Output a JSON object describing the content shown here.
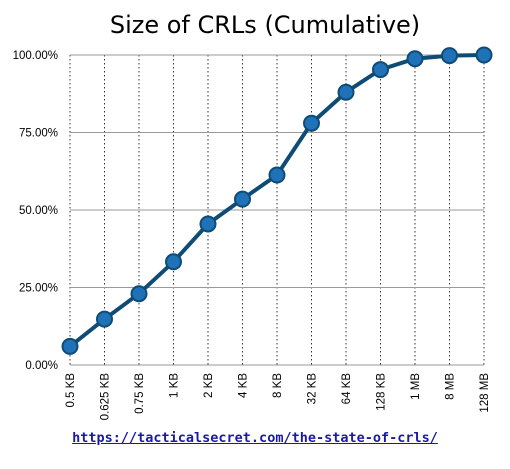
{
  "chart_data": {
    "type": "line",
    "title": "Size of CRLs (Cumulative)",
    "xlabel": "",
    "ylabel": "",
    "categories": [
      "0.5 KB",
      "0.625 KB",
      "0.75 KB",
      "1 KB",
      "2 KB",
      "4 KB",
      "8 KB",
      "32 KB",
      "64 KB",
      "128 KB",
      "1 MB",
      "8 MB",
      "128 MB"
    ],
    "series": [
      {
        "values": [
          6.0,
          14.8,
          23.0,
          33.3,
          45.5,
          53.5,
          61.3,
          78.0,
          88.0,
          95.3,
          98.8,
          99.8,
          100.0
        ]
      }
    ],
    "ylim": [
      0,
      100
    ],
    "yticks": [
      "0.00%",
      "25.00%",
      "50.00%",
      "75.00%",
      "100.00%"
    ],
    "grid": {
      "y": "solid",
      "x": "dotted"
    },
    "colors": {
      "line": "#0f4c75",
      "marker": "#1f72b8"
    }
  },
  "source": {
    "url": "https://tacticalsecret.com/the-state-of-crls/"
  }
}
